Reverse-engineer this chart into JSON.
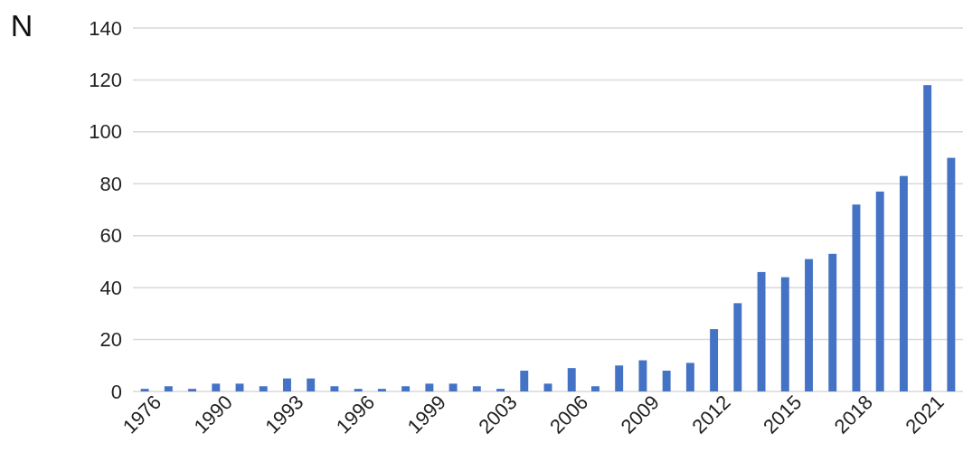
{
  "chart_data": {
    "type": "bar",
    "ylabel": "N",
    "categories": [
      "1976",
      null,
      null,
      "1990",
      null,
      null,
      "1993",
      null,
      null,
      "1996",
      null,
      null,
      "1999",
      null,
      null,
      "2003",
      null,
      null,
      "2006",
      null,
      null,
      "2009",
      null,
      null,
      "2012",
      null,
      null,
      "2015",
      null,
      null,
      "2018",
      null,
      null,
      "2021",
      null
    ],
    "values": [
      1,
      2,
      1,
      3,
      3,
      2,
      5,
      5,
      2,
      1,
      1,
      2,
      3,
      3,
      2,
      1,
      8,
      3,
      9,
      2,
      10,
      12,
      8,
      11,
      24,
      34,
      46,
      44,
      51,
      53,
      72,
      77,
      83,
      118,
      90
    ],
    "color": "#4472c4",
    "ylim": [
      0,
      140
    ],
    "yticks": [
      0,
      20,
      40,
      60,
      80,
      100,
      120,
      140
    ],
    "grid": "y"
  }
}
